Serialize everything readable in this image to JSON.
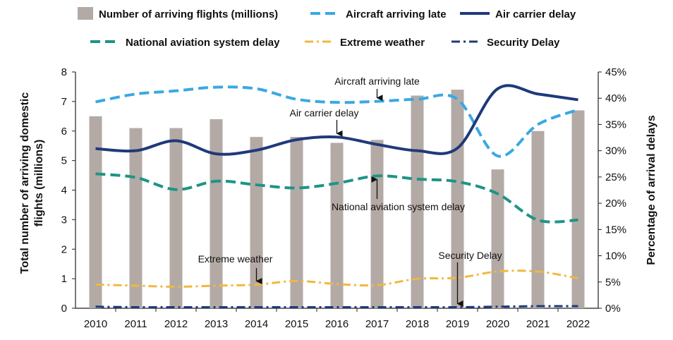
{
  "chart_data": {
    "type": "bar",
    "categories": [
      "2010",
      "2011",
      "2012",
      "2013",
      "2014",
      "2015",
      "2016",
      "2017",
      "2018",
      "2019",
      "2020",
      "2021",
      "2022"
    ],
    "bars": {
      "name": "Number of arriving flights (millions)",
      "color": "#b3aaa6",
      "axis": "left",
      "values": [
        6.5,
        6.1,
        6.1,
        6.4,
        5.8,
        5.8,
        5.6,
        5.7,
        7.2,
        7.4,
        4.7,
        6.0,
        6.7
      ]
    },
    "series": [
      {
        "name": "Aircraft arriving late",
        "axis": "right",
        "color": "#3aa8e4",
        "style": "dash",
        "values": [
          39.3,
          40.8,
          41.4,
          42.1,
          41.8,
          39.8,
          39.2,
          39.4,
          39.8,
          39.8,
          29.0,
          35.0,
          37.8
        ]
      },
      {
        "name": "Air carrier delay",
        "axis": "right",
        "color": "#1f3a7a",
        "style": "solid",
        "values": [
          30.4,
          30.0,
          31.9,
          29.4,
          30.1,
          32.1,
          32.6,
          31.2,
          30.0,
          30.5,
          41.8,
          40.8,
          39.7
        ]
      },
      {
        "name": "National aviation system delay",
        "axis": "right",
        "color": "#1e9486",
        "style": "dash",
        "values": [
          25.6,
          24.9,
          22.6,
          24.2,
          23.5,
          22.9,
          23.8,
          25.2,
          24.6,
          24.1,
          21.8,
          16.8,
          16.8
        ]
      },
      {
        "name": "Extreme weather",
        "axis": "right",
        "color": "#f2b83c",
        "style": "dashdot",
        "values": [
          4.5,
          4.3,
          4.1,
          4.3,
          4.5,
          5.2,
          4.6,
          4.4,
          5.6,
          5.8,
          7.0,
          7.0,
          5.7
        ]
      },
      {
        "name": "Security Delay",
        "axis": "right",
        "color": "#1f3a7a",
        "style": "dashdot",
        "values": [
          0.3,
          0.2,
          0.2,
          0.2,
          0.2,
          0.2,
          0.2,
          0.2,
          0.2,
          0.2,
          0.3,
          0.4,
          0.4
        ]
      }
    ],
    "ylabel_left": "Total number of arriving domestic flights (millions)",
    "ylabel_right": "Percentage of arrival delays",
    "ylim_left": [
      0,
      8
    ],
    "ylim_right": [
      0,
      45
    ],
    "yticks_left": [
      "0",
      "1",
      "2",
      "3",
      "4",
      "5",
      "6",
      "7",
      "8"
    ],
    "yticks_right": [
      "0%",
      "5%",
      "10%",
      "15%",
      "20%",
      "25%",
      "30%",
      "35%",
      "40%",
      "45%"
    ],
    "legend_position": "top",
    "grid": false,
    "annotations": [
      {
        "text": "Aircraft arriving late",
        "series": "Aircraft arriving late",
        "year": "2017"
      },
      {
        "text": "Air carrier delay",
        "series": "Air carrier delay",
        "year": "2016"
      },
      {
        "text": "National aviation system delay",
        "series": "National aviation system delay",
        "year": "2017"
      },
      {
        "text": "Extreme weather",
        "series": "Extreme weather",
        "year": "2014"
      },
      {
        "text": "Security Delay",
        "series": "Security Delay",
        "year": "2019"
      }
    ]
  }
}
